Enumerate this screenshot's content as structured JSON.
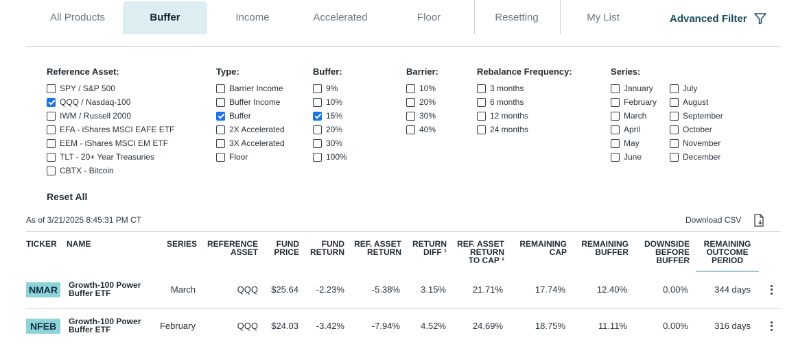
{
  "tabs": [
    {
      "label": "All Products"
    },
    {
      "label": "Buffer"
    },
    {
      "label": "Income"
    },
    {
      "label": "Accelerated"
    },
    {
      "label": "Floor"
    },
    {
      "label": "Resetting"
    },
    {
      "label": "My List"
    }
  ],
  "advanced_filter": "Advanced Filter",
  "filters": {
    "reference_asset": {
      "title": "Reference Asset:",
      "options": [
        {
          "label": "SPY / S&P 500",
          "checked": false
        },
        {
          "label": "QQQ / Nasdaq-100",
          "checked": true
        },
        {
          "label": "IWM / Russell 2000",
          "checked": false
        },
        {
          "label": "EFA - iShares MSCI EAFE ETF",
          "checked": false
        },
        {
          "label": "EEM - iShares MSCI EM ETF",
          "checked": false
        },
        {
          "label": "TLT - 20+ Year Treasuries",
          "checked": false
        },
        {
          "label": "CBTX - Bitcoin",
          "checked": false
        }
      ]
    },
    "type": {
      "title": "Type:",
      "options": [
        {
          "label": "Barrier Income",
          "checked": false
        },
        {
          "label": "Buffer Income",
          "checked": false
        },
        {
          "label": "Buffer",
          "checked": true
        },
        {
          "label": "2X Accelerated",
          "checked": false
        },
        {
          "label": "3X Accelerated",
          "checked": false
        },
        {
          "label": "Floor",
          "checked": false
        }
      ]
    },
    "buffer": {
      "title": "Buffer:",
      "options": [
        {
          "label": "9%",
          "checked": false
        },
        {
          "label": "10%",
          "checked": false
        },
        {
          "label": "15%",
          "checked": true
        },
        {
          "label": "20%",
          "checked": false
        },
        {
          "label": "30%",
          "checked": false
        },
        {
          "label": "100%",
          "checked": false
        }
      ]
    },
    "barrier": {
      "title": "Barrier:",
      "options": [
        {
          "label": "10%",
          "checked": false
        },
        {
          "label": "20%",
          "checked": false
        },
        {
          "label": "30%",
          "checked": false
        },
        {
          "label": "40%",
          "checked": false
        }
      ]
    },
    "rebalance": {
      "title": "Rebalance Frequency:",
      "options": [
        {
          "label": "3 months",
          "checked": false
        },
        {
          "label": "6 months",
          "checked": false
        },
        {
          "label": "12 months",
          "checked": false
        },
        {
          "label": "24 months",
          "checked": false
        }
      ]
    },
    "series": {
      "title": "Series:",
      "col1": [
        {
          "label": "January",
          "checked": false
        },
        {
          "label": "February",
          "checked": false
        },
        {
          "label": "March",
          "checked": false
        },
        {
          "label": "April",
          "checked": false
        },
        {
          "label": "May",
          "checked": false
        },
        {
          "label": "June",
          "checked": false
        }
      ],
      "col2": [
        {
          "label": "July",
          "checked": false
        },
        {
          "label": "August",
          "checked": false
        },
        {
          "label": "September",
          "checked": false
        },
        {
          "label": "October",
          "checked": false
        },
        {
          "label": "November",
          "checked": false
        },
        {
          "label": "December",
          "checked": false
        }
      ]
    }
  },
  "reset_all": "Reset All",
  "as_of": "As of 3/21/2025 8:45:31 PM CT",
  "download_csv": "Download CSV",
  "table": {
    "headers": {
      "ticker": "TICKER",
      "name": "NAME",
      "series": "SERIES",
      "ref_asset": [
        "REFERENCE",
        "ASSET"
      ],
      "fund_price": [
        "FUND",
        "PRICE"
      ],
      "fund_return": [
        "FUND",
        "RETURN"
      ],
      "ref_asset_return": [
        "REF. ASSET",
        "RETURN"
      ],
      "return_diff": [
        "RETURN",
        "DIFF ¹"
      ],
      "ref_asset_return_to_cap": [
        "REF. ASSET",
        "RETURN",
        "TO CAP ²"
      ],
      "remaining_cap": [
        "REMAINING",
        "CAP"
      ],
      "remaining_buffer": [
        "REMAINING",
        "BUFFER"
      ],
      "downside_before_buffer": [
        "DOWNSIDE",
        "BEFORE",
        "BUFFER"
      ],
      "remaining_outcome_period": [
        "REMAINING",
        "OUTCOME",
        "PERIOD"
      ]
    },
    "rows": [
      {
        "ticker": "NMAR",
        "name": "Growth-100 Power Buffer ETF",
        "series": "March",
        "ref_asset": "QQQ",
        "fund_price": "$25.64",
        "fund_return": "-2.23%",
        "ref_asset_return": "-5.38%",
        "return_diff": "3.15%",
        "to_cap": "21.71%",
        "remaining_cap": "17.74%",
        "remaining_buffer": "12.40%",
        "downside": "0.00%",
        "remaining_period": "344 days"
      },
      {
        "ticker": "NFEB",
        "name": "Growth-100 Power Buffer ETF",
        "series": "February",
        "ref_asset": "QQQ",
        "fund_price": "$24.03",
        "fund_return": "-3.42%",
        "ref_asset_return": "-7.94%",
        "return_diff": "4.52%",
        "to_cap": "24.69%",
        "remaining_cap": "18.75%",
        "remaining_buffer": "11.11%",
        "downside": "0.00%",
        "remaining_period": "316 days"
      }
    ]
  },
  "colors": {
    "accent_tab_bg": "#dceef1",
    "ticker_bg": "#8ed3da",
    "checkbox": "#1a73e8",
    "filter_link": "#1b4b5a"
  }
}
